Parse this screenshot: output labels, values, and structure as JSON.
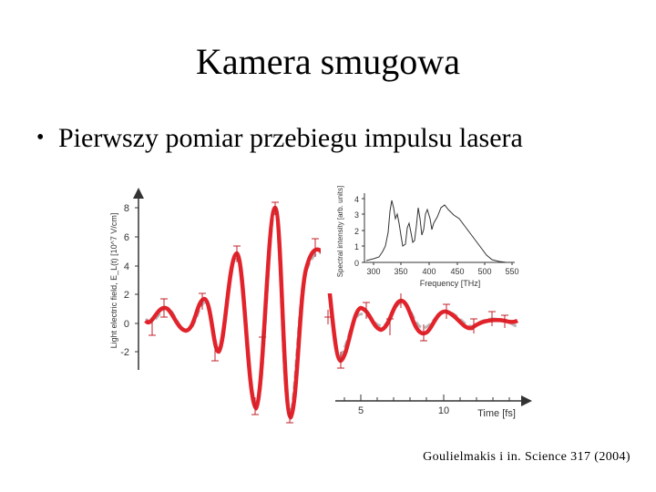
{
  "slide": {
    "title": "Kamera smugowa",
    "bullets": [
      {
        "marker": "•",
        "text": "Pierwszy pomiar przebiegu impulsu lasera"
      }
    ],
    "citation": "Goulielmakis i in. Science 317 (2004)"
  },
  "figure": {
    "main_plot": {
      "ylabel": "Light electric field, E_L(t) [10^7 V/cm]",
      "y_ticks": [
        "8",
        "6",
        "4",
        "2",
        "0",
        "-2"
      ],
      "x_ticks": [
        "5",
        "10"
      ],
      "xlabel": "Time [fs]",
      "line_color": "#e2232b",
      "fit_color": "#b8b8b8"
    },
    "inset": {
      "ylabel": "Spectral intensity [arb. units]",
      "y_ticks": [
        "4",
        "3",
        "2",
        "1",
        "0"
      ],
      "x_ticks": [
        "300",
        "350",
        "400",
        "450",
        "500",
        "550"
      ],
      "xlabel": "Frequency [THz]"
    }
  }
}
